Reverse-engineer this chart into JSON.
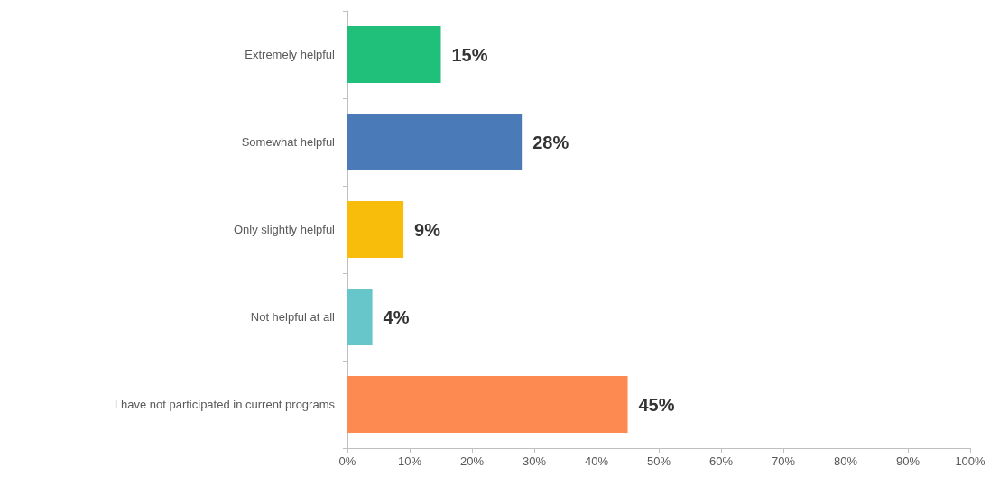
{
  "chart_data": {
    "type": "bar",
    "orientation": "horizontal",
    "categories": [
      "Extremely helpful",
      "Somewhat helpful",
      "Only slightly helpful",
      "Not helpful at all",
      "I have not participated in current programs"
    ],
    "values": [
      15,
      28,
      9,
      4,
      45
    ],
    "colors": [
      "#20c07a",
      "#4a7ab8",
      "#f7bd0a",
      "#67c6c9",
      "#fd8a50"
    ],
    "value_labels": [
      "15%",
      "28%",
      "9%",
      "4%",
      "45%"
    ],
    "xlim": [
      0,
      100
    ],
    "xticks": [
      {
        "value": 0,
        "label": "0%"
      },
      {
        "value": 10,
        "label": "10%"
      },
      {
        "value": 20,
        "label": "20%"
      },
      {
        "value": 30,
        "label": "30%"
      },
      {
        "value": 40,
        "label": "40%"
      },
      {
        "value": 50,
        "label": "50%"
      },
      {
        "value": 60,
        "label": "60%"
      },
      {
        "value": 70,
        "label": "70%"
      },
      {
        "value": 80,
        "label": "80%"
      },
      {
        "value": 90,
        "label": "90%"
      },
      {
        "value": 100,
        "label": "100%"
      }
    ],
    "grid": false
  }
}
